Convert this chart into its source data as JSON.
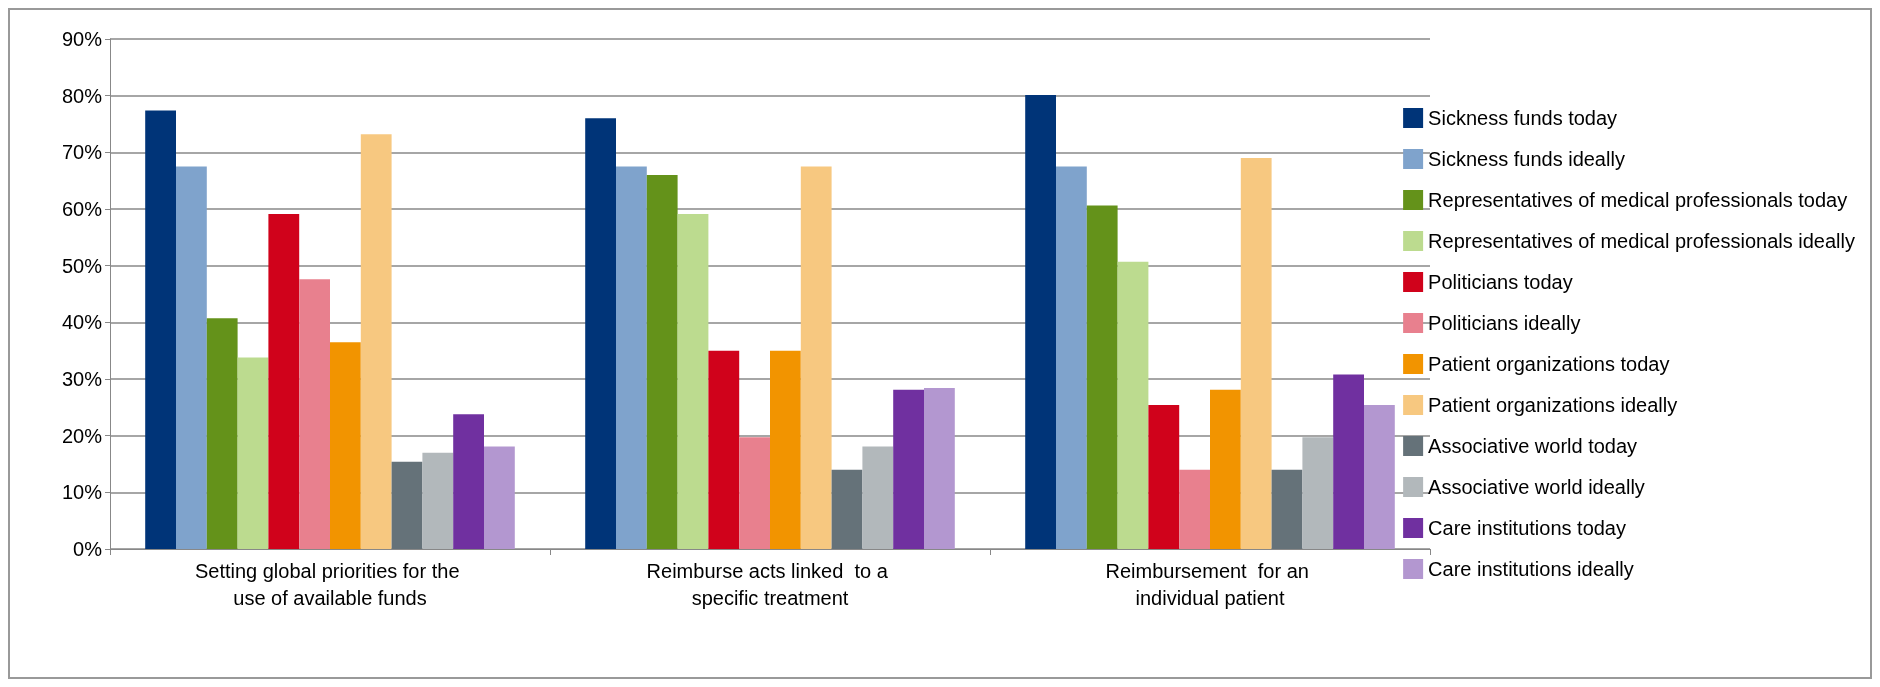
{
  "chart_data": {
    "type": "bar",
    "categories": [
      "Setting global priorities for the use of available funds",
      "Reimburse acts linked  to a specific treatment",
      "Reimbursement  for an individual patient"
    ],
    "series": [
      {
        "name": "Sickness funds today",
        "color": "#003478",
        "values": [
          77.4,
          76.0,
          80.1
        ]
      },
      {
        "name": "Sickness funds ideally",
        "color": "#7fa3cc",
        "values": [
          67.5,
          67.5,
          67.5
        ]
      },
      {
        "name": "Representatives of medical professionals today",
        "color": "#64921a",
        "values": [
          40.7,
          66.0,
          60.6
        ]
      },
      {
        "name": "Representatives of medical professionals ideally",
        "color": "#bcdb8f",
        "values": [
          33.8,
          59.1,
          50.7
        ]
      },
      {
        "name": "Politicians today",
        "color": "#d0021b",
        "values": [
          59.1,
          35.0,
          25.4
        ]
      },
      {
        "name": "Politicians ideally",
        "color": "#e8808e",
        "values": [
          47.6,
          19.7,
          14.0
        ]
      },
      {
        "name": "Patient organizations today",
        "color": "#f29400",
        "values": [
          36.5,
          35.0,
          28.1
        ]
      },
      {
        "name": "Patient organizations ideally",
        "color": "#f7c880",
        "values": [
          73.2,
          67.5,
          69.0
        ]
      },
      {
        "name": "Associative world today",
        "color": "#657279",
        "values": [
          15.4,
          14.0,
          14.0
        ]
      },
      {
        "name": "Associative world ideally",
        "color": "#b2b8bb",
        "values": [
          17.0,
          18.1,
          19.7
        ]
      },
      {
        "name": "Care institutions today",
        "color": "#7030a0",
        "values": [
          23.8,
          28.1,
          30.8
        ]
      },
      {
        "name": "Care institutions ideally",
        "color": "#b397d0",
        "values": [
          18.1,
          28.4,
          25.4
        ]
      }
    ],
    "ylim": [
      0,
      90
    ],
    "yticks": [
      {
        "value": 0,
        "label": "0%"
      },
      {
        "value": 10,
        "label": "10%"
      },
      {
        "value": 20,
        "label": "20%"
      },
      {
        "value": 30,
        "label": "30%"
      },
      {
        "value": 40,
        "label": "40%"
      },
      {
        "value": 50,
        "label": "50%"
      },
      {
        "value": 60,
        "label": "60%"
      },
      {
        "value": 70,
        "label": "70%"
      },
      {
        "value": 80,
        "label": "80%"
      },
      {
        "value": 90,
        "label": "90%"
      }
    ],
    "grid": "y",
    "legend": "right"
  }
}
